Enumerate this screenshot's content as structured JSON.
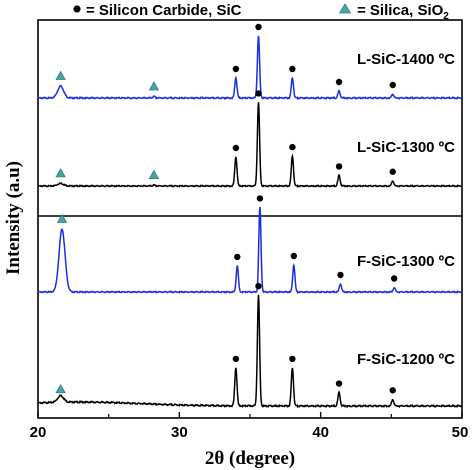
{
  "chart_data": {
    "type": "line",
    "xlabel": "2θ (degree)",
    "ylabel": "Intensity (a.u)",
    "xlim": [
      20,
      50
    ],
    "x_ticks": [
      "20",
      "30",
      "40",
      "50"
    ],
    "y_ticks": "none",
    "grid": false,
    "legend_position": "top",
    "legend": [
      {
        "marker": "circle",
        "label": "= Silicon Carbide, SiC",
        "color": "#000000"
      },
      {
        "marker": "triangle",
        "label": "= Silica, SiO",
        "subscript": "2",
        "color": "#4aa3a8"
      }
    ],
    "panels": [
      {
        "name": "L-SiC-1400 ºC",
        "color": "#1a2ee6",
        "peaks": [
          {
            "x": 21.6,
            "h": 0.12
          },
          {
            "x": 28.2,
            "h": 0.015
          },
          {
            "x": 34.0,
            "h": 0.2
          },
          {
            "x": 35.6,
            "h": 0.62
          },
          {
            "x": 38.0,
            "h": 0.2
          },
          {
            "x": 41.3,
            "h": 0.07
          },
          {
            "x": 45.1,
            "h": 0.04
          }
        ],
        "sic_markers": [
          34.0,
          35.6,
          38.0,
          41.3,
          45.1
        ],
        "silica_markers": [
          21.6,
          28.2
        ]
      },
      {
        "name": "L-SiC-1300 ºC",
        "color": "#000000",
        "peaks": [
          {
            "x": 21.6,
            "h": 0.03
          },
          {
            "x": 28.2,
            "h": 0.01
          },
          {
            "x": 34.0,
            "h": 0.33
          },
          {
            "x": 35.6,
            "h": 0.95
          },
          {
            "x": 38.0,
            "h": 0.34
          },
          {
            "x": 41.3,
            "h": 0.12
          },
          {
            "x": 45.1,
            "h": 0.06
          }
        ],
        "sic_markers": [
          34.0,
          35.6,
          38.0,
          41.3,
          45.1
        ],
        "silica_markers": [
          21.6,
          28.2
        ]
      },
      {
        "name": "F-SiC-1300 ºC",
        "color": "#1a2ee6",
        "peaks": [
          {
            "x": 21.7,
            "h": 0.7
          },
          {
            "x": 34.1,
            "h": 0.29
          },
          {
            "x": 35.7,
            "h": 0.94
          },
          {
            "x": 38.1,
            "h": 0.3
          },
          {
            "x": 41.4,
            "h": 0.09
          },
          {
            "x": 45.2,
            "h": 0.05
          }
        ],
        "sic_markers": [
          34.1,
          35.7,
          38.1,
          41.4,
          45.2
        ],
        "silica_markers": [
          21.7
        ]
      },
      {
        "name": "F-SiC-1200 ºC",
        "color": "#000000",
        "peaks": [
          {
            "x": 21.6,
            "h": 0.06
          },
          {
            "x": 34.0,
            "h": 0.34
          },
          {
            "x": 35.6,
            "h": 0.99
          },
          {
            "x": 38.0,
            "h": 0.34
          },
          {
            "x": 41.3,
            "h": 0.12
          },
          {
            "x": 45.1,
            "h": 0.06
          }
        ],
        "sic_markers": [
          34.0,
          35.6,
          38.0,
          41.3,
          45.1
        ],
        "silica_markers": [
          21.6
        ]
      }
    ]
  }
}
